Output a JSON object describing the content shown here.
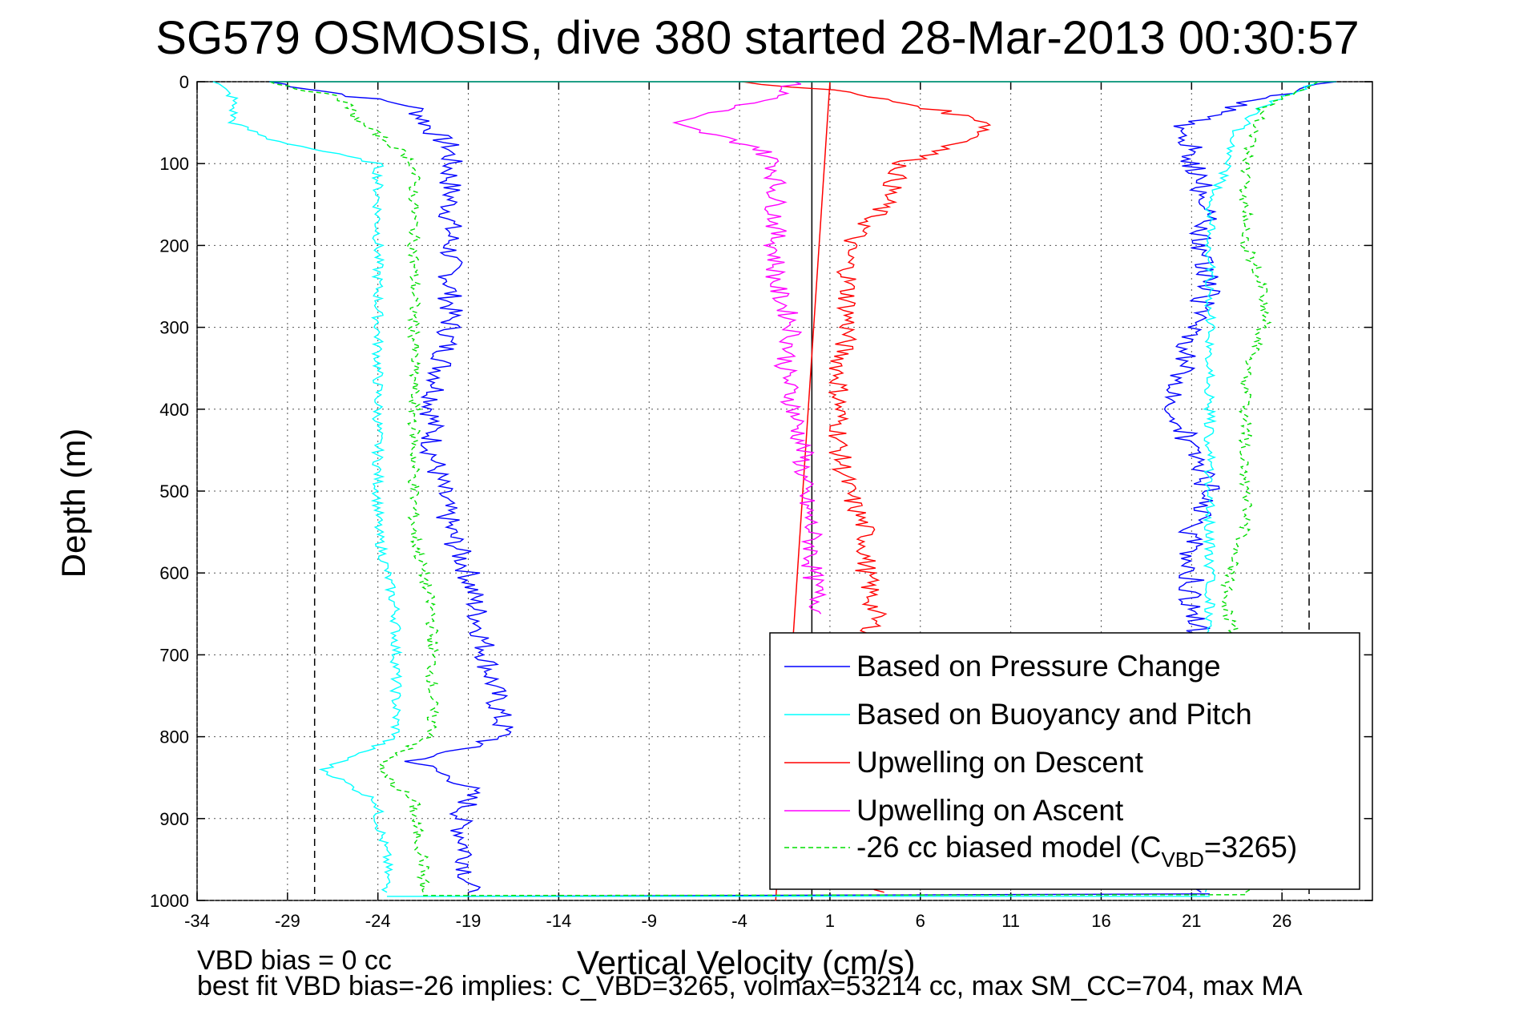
{
  "chart_data": {
    "type": "line",
    "title": "SG579 OSMOSIS, dive 380 started 28-Mar-2013 00:30:57",
    "xlabel": "Vertical Velocity (cm/s)",
    "ylabel": "Depth (m)",
    "xlim": [
      -34,
      31
    ],
    "ylim": [
      0,
      1000
    ],
    "y_reversed": true,
    "grid": true,
    "xticks": [
      -34,
      -29,
      -24,
      -19,
      -14,
      -9,
      -4,
      1,
      6,
      11,
      16,
      21,
      26
    ],
    "xtick_labels": [
      "-34",
      "-29",
      "-24",
      "-19",
      "-14",
      "-9",
      "-4",
      "1",
      "6",
      "11",
      "16",
      "21",
      "26"
    ],
    "yticks": [
      0,
      100,
      200,
      300,
      400,
      500,
      600,
      700,
      800,
      900,
      1000
    ],
    "ytick_labels": [
      "0",
      "100",
      "200",
      "300",
      "400",
      "500",
      "600",
      "700",
      "800",
      "900",
      "1000"
    ],
    "legend_position": "bottom-right",
    "legend_suffix": "=3265)",
    "legend_sub": "VBD",
    "reference_lines": [
      {
        "x": -27.5,
        "style": "dashed",
        "color": "#000000"
      },
      {
        "x": 27.5,
        "style": "dashed",
        "color": "#000000"
      },
      {
        "x": 0,
        "style": "solid",
        "color": "#000000"
      }
    ],
    "series": [
      {
        "name": "Based on Pressure Change",
        "color": "#0000ff",
        "dash": "solid",
        "descent": {
          "depth": [
            0,
            30,
            60,
            80,
            100,
            150,
            200,
            250,
            300,
            350,
            400,
            450,
            500,
            550,
            600,
            650,
            700,
            750,
            800,
            830,
            860,
            880,
            900,
            950,
            990
          ],
          "velocity": [
            -30,
            -22,
            -21,
            -20,
            -20,
            -20,
            -20,
            -20,
            -20,
            -20.5,
            -21,
            -21,
            -20.5,
            -20,
            -19,
            -18.5,
            -18,
            -17.5,
            -17,
            -22,
            -19,
            -19,
            -19.5,
            -19,
            -19
          ]
        },
        "ascent": {
          "depth": [
            990,
            950,
            900,
            850,
            800,
            750,
            700,
            650,
            600,
            550,
            500,
            450,
            400,
            350,
            300,
            250,
            200,
            150,
            100,
            80,
            60,
            40,
            20,
            0
          ],
          "velocity": [
            22,
            22,
            22,
            22,
            22,
            22,
            22,
            21,
            21,
            21,
            22,
            21,
            20,
            20.5,
            21,
            22,
            21.5,
            22,
            21,
            21,
            20,
            22,
            25,
            29
          ]
        }
      },
      {
        "name": "Based on Buoyancy and Pitch",
        "color": "#00ffff",
        "dash": "solid",
        "descent": {
          "depth": [
            0,
            20,
            50,
            70,
            100,
            150,
            200,
            250,
            300,
            350,
            400,
            450,
            500,
            550,
            600,
            650,
            700,
            750,
            800,
            820,
            840,
            880,
            900,
            950,
            990
          ],
          "velocity": [
            -33,
            -32,
            -32,
            -30,
            -24,
            -24,
            -24,
            -24,
            -24,
            -24,
            -24,
            -24,
            -24,
            -24,
            -23.5,
            -23,
            -23,
            -23,
            -23,
            -25,
            -27,
            -24,
            -24,
            -23.5,
            -23.5
          ]
        },
        "ascent": {
          "depth": [
            990,
            950,
            900,
            850,
            800,
            750,
            700,
            650,
            600,
            550,
            500,
            450,
            400,
            350,
            300,
            250,
            200,
            150,
            100,
            60,
            30,
            0
          ],
          "velocity": [
            22,
            22,
            22,
            22,
            22,
            22,
            22,
            22,
            22,
            22,
            22,
            22,
            22,
            22,
            22,
            22,
            22,
            22,
            23,
            23.5,
            25,
            28
          ]
        }
      },
      {
        "name": "Upwelling on Descent",
        "color": "#ff0000",
        "dash": "solid",
        "descent": {
          "depth": [
            0,
            10,
            30,
            50,
            70,
            100,
            150,
            200,
            250,
            300,
            350,
            400,
            450,
            500,
            550,
            600,
            650,
            700,
            750,
            800,
            850,
            900,
            950,
            990
          ],
          "velocity": [
            -4,
            1,
            6,
            10,
            9,
            5,
            4,
            2,
            2,
            2,
            1.5,
            1.5,
            1.5,
            2,
            3,
            3,
            3.5,
            3,
            3,
            3,
            3,
            3,
            3,
            4
          ]
        },
        "ascent": {
          "depth": [],
          "velocity": []
        }
      },
      {
        "name": "Upwelling on Ascent",
        "color": "#ff00ff",
        "dash": "solid",
        "descent": {
          "depth": [
            0,
            20,
            50,
            80,
            100,
            150,
            200,
            250,
            300,
            350,
            400,
            450,
            500,
            550,
            600,
            650
          ],
          "velocity": [
            -1,
            -2,
            -8,
            -3,
            -2,
            -2,
            -2,
            -2,
            -1,
            -1.5,
            -1,
            -0.5,
            -0.5,
            0,
            0,
            0.5
          ]
        },
        "ascent": {
          "depth": [],
          "velocity": []
        }
      },
      {
        "name": "-26 cc biased model (C",
        "color": "#00dd00",
        "dash": "dashed",
        "descent": {
          "depth": [
            0,
            20,
            50,
            80,
            100,
            150,
            200,
            250,
            300,
            350,
            400,
            450,
            500,
            550,
            600,
            650,
            700,
            750,
            800,
            820,
            840,
            880,
            900,
            950,
            990
          ],
          "velocity": [
            -30,
            -26,
            -25,
            -23,
            -22,
            -22,
            -22,
            -22,
            -22,
            -22,
            -22,
            -22,
            -22,
            -22,
            -21.5,
            -21,
            -21,
            -21,
            -21,
            -23,
            -24,
            -22,
            -22,
            -21.5,
            -21.5
          ]
        },
        "ascent": {
          "depth": [
            990,
            950,
            900,
            850,
            800,
            750,
            700,
            650,
            600,
            550,
            500,
            450,
            400,
            350,
            300,
            250,
            200,
            150,
            100,
            60,
            30,
            0
          ],
          "velocity": [
            24,
            24,
            24,
            24,
            24,
            24,
            24,
            23,
            23,
            24,
            24,
            24,
            24,
            24,
            25,
            25,
            24,
            24,
            24,
            24.5,
            25,
            28
          ]
        }
      }
    ],
    "fit_line": {
      "color": "#ff0000",
      "points": [
        [
          1,
          0
        ],
        [
          -2,
          1000
        ]
      ]
    }
  },
  "notes": {
    "line1": "VBD bias = 0 cc",
    "line2": "best fit VBD bias=-26 implies: C_VBD=3265, volmax=53214 cc, max SM_CC=704, max MA"
  }
}
